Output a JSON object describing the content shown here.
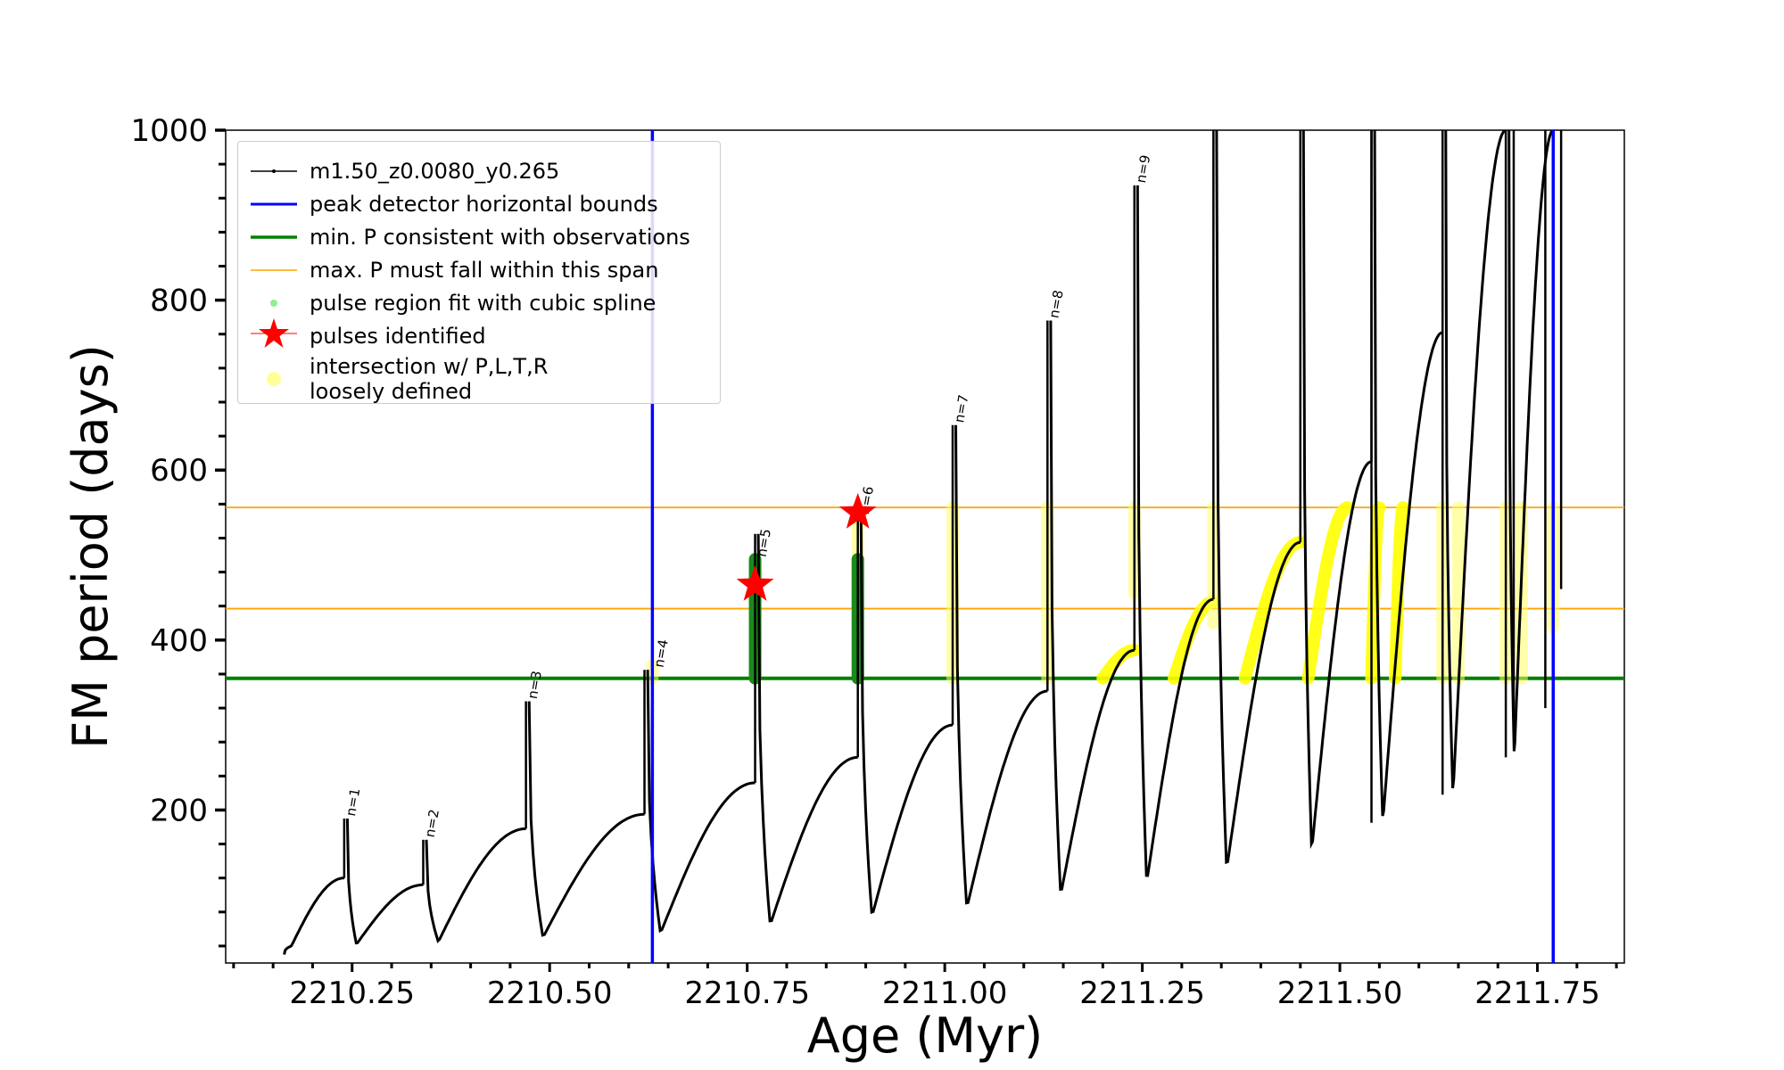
{
  "chart_data": {
    "type": "line",
    "title": "",
    "xlabel": "Age (Myr)",
    "ylabel": "FM period (days)",
    "xlim": [
      2210.09,
      2211.86
    ],
    "ylim": [
      20,
      1000
    ],
    "xticks": [
      2210.25,
      2210.5,
      2210.75,
      2211.0,
      2211.25,
      2211.5,
      2211.75
    ],
    "xtick_labels": [
      "2210.25",
      "2210.50",
      "2210.75",
      "2211.00",
      "2211.25",
      "2211.50",
      "2211.75"
    ],
    "yticks": [
      200,
      400,
      600,
      800,
      1000
    ],
    "ytick_labels": [
      "200",
      "400",
      "600",
      "800",
      "1000"
    ],
    "grid": false,
    "legend_position": "upper-left",
    "legend": [
      {
        "label": "m1.50_z0.0080_y0.265",
        "kind": "line-marker",
        "color": "#000000"
      },
      {
        "label": "peak detector horizontal bounds",
        "kind": "line",
        "color": "#0000ff"
      },
      {
        "label": "min. P consistent with observations",
        "kind": "line",
        "color": "#008000"
      },
      {
        "label": "max. P must fall within this span",
        "kind": "thin-line",
        "color": "#ffa500"
      },
      {
        "label": "pulse region fit with cubic spline",
        "kind": "dot",
        "color": "#90ee90"
      },
      {
        "label": "pulses identified",
        "kind": "star",
        "color": "#ff0000"
      },
      {
        "label": "intersection w/ P,L,T,R\nloosely defined",
        "kind": "circle",
        "color": "#ffff99"
      }
    ],
    "vertical_bounds": [
      2210.63,
      2211.77
    ],
    "min_period": 355,
    "max_period_span": [
      437,
      556
    ],
    "pulse_labels": [
      {
        "text": "n=1",
        "x": 2210.24,
        "y": 190
      },
      {
        "text": "n=2",
        "x": 2210.34,
        "y": 165
      },
      {
        "text": "n=3",
        "x": 2210.47,
        "y": 328
      },
      {
        "text": "n=4",
        "x": 2210.63,
        "y": 365
      },
      {
        "text": "n=5",
        "x": 2210.76,
        "y": 495
      },
      {
        "text": "n=6",
        "x": 2210.89,
        "y": 545
      },
      {
        "text": "n=7",
        "x": 2211.01,
        "y": 653
      },
      {
        "text": "n=8",
        "x": 2211.13,
        "y": 776
      },
      {
        "text": "n=9",
        "x": 2211.24,
        "y": 935
      }
    ],
    "pulses_identified": [
      {
        "x": 2210.76,
        "y": 465
      },
      {
        "x": 2210.89,
        "y": 550
      }
    ],
    "cycles": [
      {
        "x0": 2210.16,
        "x1": 2210.24,
        "y0": 30,
        "spike": 190,
        "dip": 40,
        "peak": 120
      },
      {
        "x0": 2210.24,
        "x1": 2210.34,
        "y0": 190,
        "spike": 165,
        "dip": 42,
        "peak": 112
      },
      {
        "x0": 2210.34,
        "x1": 2210.47,
        "y0": 165,
        "spike": 328,
        "dip": 45,
        "peak": 178
      },
      {
        "x0": 2210.47,
        "x1": 2210.62,
        "y0": 328,
        "spike": 365,
        "dip": 50,
        "peak": 195
      },
      {
        "x0": 2210.62,
        "x1": 2210.76,
        "y0": 365,
        "spike": 525,
        "dip": 55,
        "peak": 232
      },
      {
        "x0": 2210.76,
        "x1": 2210.89,
        "y0": 525,
        "spike": 555,
        "dip": 65,
        "peak": 262
      },
      {
        "x0": 2210.89,
        "x1": 2211.01,
        "y0": 555,
        "spike": 653,
        "dip": 75,
        "peak": 300
      },
      {
        "x0": 2211.01,
        "x1": 2211.13,
        "y0": 653,
        "spike": 776,
        "dip": 85,
        "peak": 340
      },
      {
        "x0": 2211.13,
        "x1": 2211.24,
        "y0": 776,
        "spike": 935,
        "dip": 100,
        "peak": 388
      },
      {
        "x0": 2211.24,
        "x1": 2211.34,
        "y0": 935,
        "spike": 1000,
        "dip": 115,
        "peak": 448
      },
      {
        "x0": 2211.34,
        "x1": 2211.45,
        "y0": 1000,
        "spike": 1000,
        "dip": 130,
        "peak": 515
      },
      {
        "x0": 2211.45,
        "x1": 2211.54,
        "y0": 1000,
        "spike": 1000,
        "dip": 152,
        "peak": 610
      },
      {
        "x0": 2211.54,
        "x1": 2211.63,
        "y0": 1000,
        "spike": 1000,
        "dip": 185,
        "peak": 762
      },
      {
        "x0": 2211.63,
        "x1": 2211.71,
        "y0": 1000,
        "spike": 1000,
        "dip": 218,
        "peak": 1000
      },
      {
        "x0": 2211.71,
        "x1": 2211.77,
        "y0": 1000,
        "spike": 1000,
        "dip": 262,
        "peak": 1000
      }
    ],
    "extra_spikes": [
      {
        "x": 2211.54,
        "top": 1000,
        "bottom": 185
      },
      {
        "x": 2211.63,
        "top": 1000,
        "bottom": 218
      },
      {
        "x": 2211.71,
        "top": 1000,
        "bottom": 262
      },
      {
        "x": 2211.72,
        "top": 1000,
        "bottom": 290
      },
      {
        "x": 2211.76,
        "top": 1000,
        "bottom": 320
      },
      {
        "x": 2211.78,
        "top": 1000,
        "bottom": 460
      }
    ],
    "green_segments": [
      {
        "x": 2210.76,
        "y0": 355,
        "y1": 495
      },
      {
        "x": 2210.89,
        "y0": 355,
        "y1": 495
      }
    ],
    "yellow_arcs": [
      {
        "x0": 2211.2,
        "x1": 2211.24,
        "y0": 355,
        "y1": 388
      },
      {
        "x0": 2211.29,
        "x1": 2211.34,
        "y0": 355,
        "y1": 445
      },
      {
        "x0": 2211.38,
        "x1": 2211.45,
        "y0": 355,
        "y1": 515
      },
      {
        "x0": 2211.46,
        "x1": 2211.51,
        "y0": 355,
        "y1": 556
      },
      {
        "x0": 2211.54,
        "x1": 2211.55,
        "y0": 355,
        "y1": 556
      },
      {
        "x0": 2211.57,
        "x1": 2211.58,
        "y0": 355,
        "y1": 556
      }
    ],
    "yellow_columns": [
      {
        "x": 2210.63,
        "y0": 355,
        "y1": 370
      },
      {
        "x": 2210.89,
        "y0": 495,
        "y1": 545
      },
      {
        "x": 2211.01,
        "y0": 355,
        "y1": 556
      },
      {
        "x": 2211.13,
        "y0": 355,
        "y1": 556
      },
      {
        "x": 2211.24,
        "y0": 455,
        "y1": 556
      },
      {
        "x": 2211.34,
        "y0": 420,
        "y1": 556
      },
      {
        "x": 2211.63,
        "y0": 355,
        "y1": 556
      },
      {
        "x": 2211.65,
        "y0": 355,
        "y1": 556
      },
      {
        "x": 2211.71,
        "y0": 355,
        "y1": 556
      },
      {
        "x": 2211.73,
        "y0": 355,
        "y1": 556
      },
      {
        "x": 2211.77,
        "y0": 415,
        "y1": 556
      }
    ]
  }
}
